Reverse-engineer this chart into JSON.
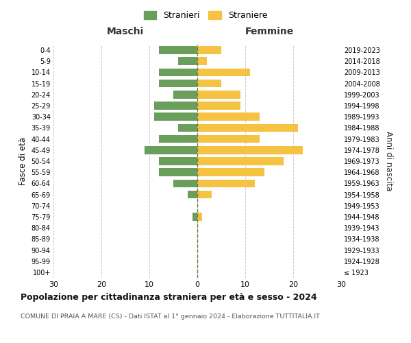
{
  "age_groups": [
    "100+",
    "95-99",
    "90-94",
    "85-89",
    "80-84",
    "75-79",
    "70-74",
    "65-69",
    "60-64",
    "55-59",
    "50-54",
    "45-49",
    "40-44",
    "35-39",
    "30-34",
    "25-29",
    "20-24",
    "15-19",
    "10-14",
    "5-9",
    "0-4"
  ],
  "birth_years": [
    "≤ 1923",
    "1924-1928",
    "1929-1933",
    "1934-1938",
    "1939-1943",
    "1944-1948",
    "1949-1953",
    "1954-1958",
    "1959-1963",
    "1964-1968",
    "1969-1973",
    "1974-1978",
    "1979-1983",
    "1984-1988",
    "1989-1993",
    "1994-1998",
    "1999-2003",
    "2004-2008",
    "2009-2013",
    "2014-2018",
    "2019-2023"
  ],
  "males": [
    0,
    0,
    0,
    0,
    0,
    1,
    0,
    2,
    5,
    8,
    8,
    11,
    8,
    4,
    9,
    9,
    5,
    8,
    8,
    4,
    8
  ],
  "females": [
    0,
    0,
    0,
    0,
    0,
    1,
    0,
    3,
    12,
    14,
    18,
    22,
    13,
    21,
    13,
    9,
    9,
    5,
    11,
    2,
    5
  ],
  "male_color": "#6a9f5b",
  "female_color": "#f5c242",
  "grid_color": "#cccccc",
  "center_line_color": "#777744",
  "title": "Popolazione per cittadinanza straniera per età e sesso - 2024",
  "subtitle": "COMUNE DI PRAIA A MARE (CS) - Dati ISTAT al 1° gennaio 2024 - Elaborazione TUTTITALIA.IT",
  "xlabel_left": "Maschi",
  "xlabel_right": "Femmine",
  "ylabel_left": "Fasce di età",
  "ylabel_right": "Anni di nascita",
  "legend_male": "Stranieri",
  "legend_female": "Straniere",
  "xlim": 30,
  "background_color": "#ffffff"
}
